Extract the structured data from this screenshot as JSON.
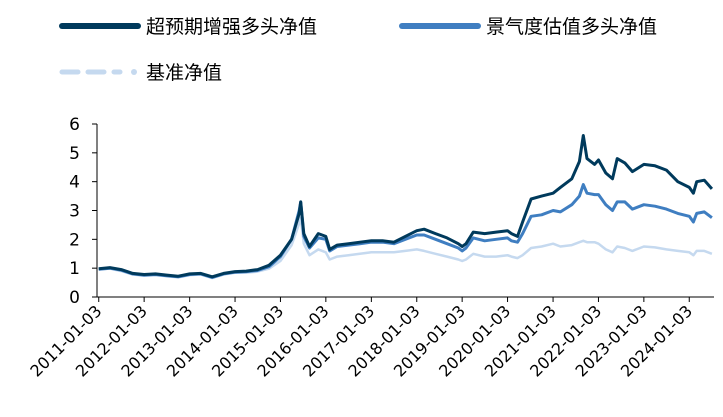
{
  "chart_data": {
    "type": "line",
    "title": "",
    "xlabel": "",
    "ylabel": "",
    "ylim": [
      0,
      6
    ],
    "yticks": [
      "0",
      "1",
      "2",
      "3",
      "4",
      "5",
      "6"
    ],
    "xticks": [
      "2011-01-03",
      "2012-01-03",
      "2013-01-03",
      "2014-01-03",
      "2015-01-03",
      "2016-01-03",
      "2017-01-03",
      "2018-01-03",
      "2019-01-03",
      "2020-01-03",
      "2021-01-03",
      "2022-01-03",
      "2023-01-03",
      "2024-01-03"
    ],
    "grid": false,
    "legend_position": "top",
    "series": [
      {
        "name": "超预期增强多头净值",
        "color": "#003a5c",
        "style": "solid",
        "points": [
          [
            "2011-01-03",
            0.98
          ],
          [
            "2011-04-03",
            1.02
          ],
          [
            "2011-07-03",
            0.95
          ],
          [
            "2011-10-03",
            0.82
          ],
          [
            "2012-01-03",
            0.78
          ],
          [
            "2012-04-03",
            0.8
          ],
          [
            "2012-07-03",
            0.76
          ],
          [
            "2012-10-03",
            0.72
          ],
          [
            "2013-01-03",
            0.8
          ],
          [
            "2013-04-03",
            0.82
          ],
          [
            "2013-07-03",
            0.7
          ],
          [
            "2013-10-03",
            0.82
          ],
          [
            "2014-01-03",
            0.88
          ],
          [
            "2014-04-03",
            0.9
          ],
          [
            "2014-07-03",
            0.95
          ],
          [
            "2014-10-03",
            1.1
          ],
          [
            "2015-01-03",
            1.45
          ],
          [
            "2015-04-03",
            2.0
          ],
          [
            "2015-06-03",
            2.9
          ],
          [
            "2015-06-15",
            3.3
          ],
          [
            "2015-07-10",
            2.2
          ],
          [
            "2015-08-25",
            1.75
          ],
          [
            "2015-11-03",
            2.2
          ],
          [
            "2016-01-03",
            2.1
          ],
          [
            "2016-02-03",
            1.65
          ],
          [
            "2016-04-03",
            1.8
          ],
          [
            "2016-07-03",
            1.85
          ],
          [
            "2016-10-03",
            1.9
          ],
          [
            "2017-01-03",
            1.95
          ],
          [
            "2017-04-03",
            1.95
          ],
          [
            "2017-07-03",
            1.9
          ],
          [
            "2017-10-03",
            2.1
          ],
          [
            "2018-01-03",
            2.3
          ],
          [
            "2018-03-03",
            2.35
          ],
          [
            "2018-06-03",
            2.2
          ],
          [
            "2018-09-03",
            2.05
          ],
          [
            "2018-12-03",
            1.85
          ],
          [
            "2019-01-03",
            1.75
          ],
          [
            "2019-02-03",
            1.85
          ],
          [
            "2019-04-03",
            2.25
          ],
          [
            "2019-07-03",
            2.2
          ],
          [
            "2019-10-03",
            2.25
          ],
          [
            "2020-01-03",
            2.3
          ],
          [
            "2020-02-03",
            2.2
          ],
          [
            "2020-03-23",
            2.1
          ],
          [
            "2020-05-03",
            2.6
          ],
          [
            "2020-07-10",
            3.4
          ],
          [
            "2020-10-03",
            3.5
          ],
          [
            "2021-01-03",
            3.6
          ],
          [
            "2021-03-03",
            3.8
          ],
          [
            "2021-06-03",
            4.1
          ],
          [
            "2021-08-03",
            4.7
          ],
          [
            "2021-09-03",
            5.6
          ],
          [
            "2021-10-03",
            4.8
          ],
          [
            "2021-12-03",
            4.6
          ],
          [
            "2022-01-03",
            4.75
          ],
          [
            "2022-03-03",
            4.3
          ],
          [
            "2022-04-26",
            4.1
          ],
          [
            "2022-06-03",
            4.8
          ],
          [
            "2022-08-03",
            4.65
          ],
          [
            "2022-10-03",
            4.35
          ],
          [
            "2023-01-03",
            4.6
          ],
          [
            "2023-04-03",
            4.55
          ],
          [
            "2023-07-03",
            4.4
          ],
          [
            "2023-10-03",
            4.0
          ],
          [
            "2024-01-03",
            3.8
          ],
          [
            "2024-02-05",
            3.6
          ],
          [
            "2024-03-03",
            4.0
          ],
          [
            "2024-05-03",
            4.05
          ],
          [
            "2024-07-03",
            3.75
          ]
        ]
      },
      {
        "name": "景气度估值多头净值",
        "color": "#3f7ec1",
        "style": "solid",
        "points": [
          [
            "2011-01-03",
            0.96
          ],
          [
            "2011-04-03",
            1.0
          ],
          [
            "2011-07-03",
            0.93
          ],
          [
            "2011-10-03",
            0.8
          ],
          [
            "2012-01-03",
            0.76
          ],
          [
            "2012-04-03",
            0.78
          ],
          [
            "2012-07-03",
            0.74
          ],
          [
            "2012-10-03",
            0.7
          ],
          [
            "2013-01-03",
            0.78
          ],
          [
            "2013-04-03",
            0.8
          ],
          [
            "2013-07-03",
            0.68
          ],
          [
            "2013-10-03",
            0.8
          ],
          [
            "2014-01-03",
            0.86
          ],
          [
            "2014-04-03",
            0.88
          ],
          [
            "2014-07-03",
            0.92
          ],
          [
            "2014-10-03",
            1.05
          ],
          [
            "2015-01-03",
            1.4
          ],
          [
            "2015-04-03",
            2.0
          ],
          [
            "2015-06-03",
            3.0
          ],
          [
            "2015-06-15",
            3.3
          ],
          [
            "2015-07-10",
            2.1
          ],
          [
            "2015-08-25",
            1.7
          ],
          [
            "2015-11-03",
            2.05
          ],
          [
            "2016-01-03",
            2.0
          ],
          [
            "2016-02-03",
            1.6
          ],
          [
            "2016-04-03",
            1.75
          ],
          [
            "2016-07-03",
            1.8
          ],
          [
            "2016-10-03",
            1.85
          ],
          [
            "2017-01-03",
            1.9
          ],
          [
            "2017-04-03",
            1.9
          ],
          [
            "2017-07-03",
            1.85
          ],
          [
            "2017-10-03",
            2.0
          ],
          [
            "2018-01-03",
            2.15
          ],
          [
            "2018-03-03",
            2.15
          ],
          [
            "2018-06-03",
            2.0
          ],
          [
            "2018-09-03",
            1.85
          ],
          [
            "2018-12-03",
            1.7
          ],
          [
            "2019-01-03",
            1.6
          ],
          [
            "2019-02-03",
            1.7
          ],
          [
            "2019-04-03",
            2.05
          ],
          [
            "2019-07-03",
            1.95
          ],
          [
            "2019-10-03",
            2.0
          ],
          [
            "2020-01-03",
            2.05
          ],
          [
            "2020-02-03",
            1.95
          ],
          [
            "2020-03-23",
            1.9
          ],
          [
            "2020-05-03",
            2.2
          ],
          [
            "2020-07-10",
            2.8
          ],
          [
            "2020-10-03",
            2.85
          ],
          [
            "2021-01-03",
            3.0
          ],
          [
            "2021-03-03",
            2.95
          ],
          [
            "2021-06-03",
            3.2
          ],
          [
            "2021-08-03",
            3.5
          ],
          [
            "2021-09-03",
            3.9
          ],
          [
            "2021-10-03",
            3.6
          ],
          [
            "2021-12-03",
            3.55
          ],
          [
            "2022-01-03",
            3.55
          ],
          [
            "2022-03-03",
            3.2
          ],
          [
            "2022-04-26",
            3.0
          ],
          [
            "2022-06-03",
            3.3
          ],
          [
            "2022-08-03",
            3.3
          ],
          [
            "2022-10-03",
            3.05
          ],
          [
            "2023-01-03",
            3.2
          ],
          [
            "2023-04-03",
            3.15
          ],
          [
            "2023-07-03",
            3.05
          ],
          [
            "2023-10-03",
            2.9
          ],
          [
            "2024-01-03",
            2.8
          ],
          [
            "2024-02-05",
            2.6
          ],
          [
            "2024-03-03",
            2.9
          ],
          [
            "2024-05-03",
            2.95
          ],
          [
            "2024-07-03",
            2.75
          ]
        ]
      },
      {
        "name": "基准净值",
        "color": "#c5d9ef",
        "style": "dashed",
        "points": [
          [
            "2011-01-03",
            0.97
          ],
          [
            "2011-04-03",
            0.98
          ],
          [
            "2011-07-03",
            0.9
          ],
          [
            "2011-10-03",
            0.78
          ],
          [
            "2012-01-03",
            0.74
          ],
          [
            "2012-04-03",
            0.76
          ],
          [
            "2012-07-03",
            0.72
          ],
          [
            "2012-10-03",
            0.68
          ],
          [
            "2013-01-03",
            0.76
          ],
          [
            "2013-04-03",
            0.78
          ],
          [
            "2013-07-03",
            0.66
          ],
          [
            "2013-10-03",
            0.78
          ],
          [
            "2014-01-03",
            0.84
          ],
          [
            "2014-04-03",
            0.84
          ],
          [
            "2014-07-03",
            0.88
          ],
          [
            "2014-10-03",
            0.98
          ],
          [
            "2015-01-03",
            1.25
          ],
          [
            "2015-04-03",
            1.8
          ],
          [
            "2015-06-03",
            2.55
          ],
          [
            "2015-06-15",
            2.75
          ],
          [
            "2015-07-10",
            1.85
          ],
          [
            "2015-08-25",
            1.45
          ],
          [
            "2015-11-03",
            1.65
          ],
          [
            "2016-01-03",
            1.55
          ],
          [
            "2016-02-03",
            1.3
          ],
          [
            "2016-04-03",
            1.4
          ],
          [
            "2016-07-03",
            1.45
          ],
          [
            "2016-10-03",
            1.5
          ],
          [
            "2017-01-03",
            1.55
          ],
          [
            "2017-04-03",
            1.55
          ],
          [
            "2017-07-03",
            1.55
          ],
          [
            "2017-10-03",
            1.6
          ],
          [
            "2018-01-03",
            1.65
          ],
          [
            "2018-03-03",
            1.6
          ],
          [
            "2018-06-03",
            1.5
          ],
          [
            "2018-09-03",
            1.4
          ],
          [
            "2018-12-03",
            1.3
          ],
          [
            "2019-01-03",
            1.25
          ],
          [
            "2019-02-03",
            1.3
          ],
          [
            "2019-04-03",
            1.5
          ],
          [
            "2019-07-03",
            1.4
          ],
          [
            "2019-10-03",
            1.4
          ],
          [
            "2020-01-03",
            1.45
          ],
          [
            "2020-02-03",
            1.4
          ],
          [
            "2020-03-23",
            1.35
          ],
          [
            "2020-05-03",
            1.45
          ],
          [
            "2020-07-10",
            1.7
          ],
          [
            "2020-10-03",
            1.75
          ],
          [
            "2021-01-03",
            1.85
          ],
          [
            "2021-03-03",
            1.75
          ],
          [
            "2021-06-03",
            1.8
          ],
          [
            "2021-08-03",
            1.9
          ],
          [
            "2021-09-03",
            1.95
          ],
          [
            "2021-10-03",
            1.9
          ],
          [
            "2021-12-03",
            1.9
          ],
          [
            "2022-01-03",
            1.85
          ],
          [
            "2022-03-03",
            1.65
          ],
          [
            "2022-04-26",
            1.55
          ],
          [
            "2022-06-03",
            1.75
          ],
          [
            "2022-08-03",
            1.7
          ],
          [
            "2022-10-03",
            1.6
          ],
          [
            "2023-01-03",
            1.75
          ],
          [
            "2023-04-03",
            1.72
          ],
          [
            "2023-07-03",
            1.65
          ],
          [
            "2023-10-03",
            1.6
          ],
          [
            "2024-01-03",
            1.55
          ],
          [
            "2024-02-05",
            1.45
          ],
          [
            "2024-03-03",
            1.6
          ],
          [
            "2024-05-03",
            1.6
          ],
          [
            "2024-07-03",
            1.5
          ]
        ]
      }
    ]
  }
}
